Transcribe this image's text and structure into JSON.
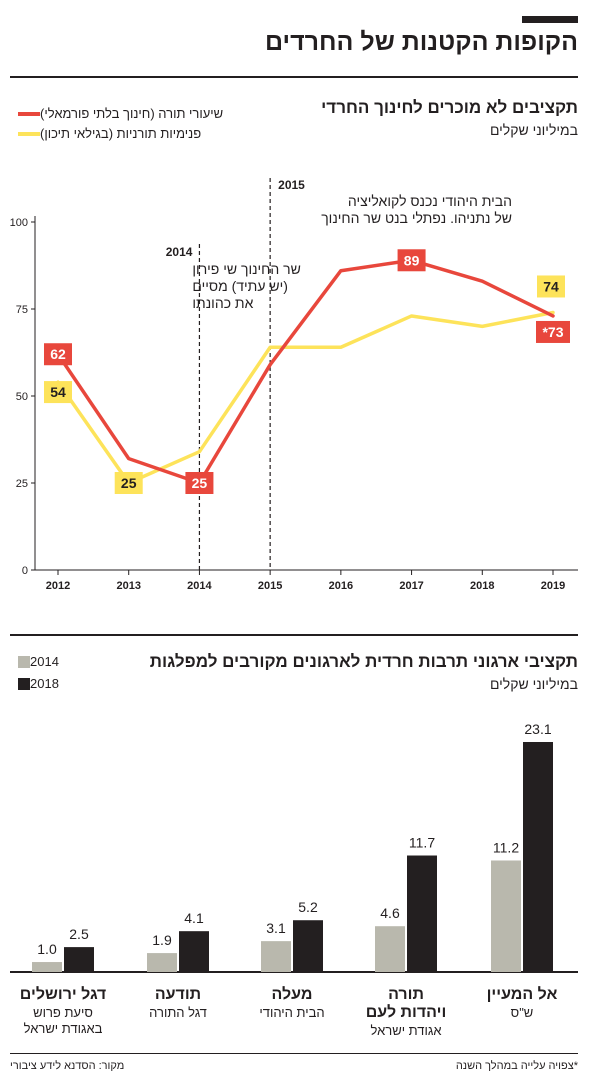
{
  "page_title": "הקופות הקטנות של החרדים",
  "line_chart": {
    "title": "תקציבים לא מוכרים לחינוך החרדי",
    "subtitle": "במיליוני שקלים",
    "legend": [
      {
        "label": "שיעורי תורה (חינוך בלתי פורמאלי)",
        "color": "#e8473c"
      },
      {
        "label": "פנימיות תורניות (בגילאי תיכון)",
        "color": "#fde35a"
      }
    ],
    "annotations": [
      {
        "year": "2014",
        "x": 2014,
        "lines": [
          "שר החינוך שי פירון",
          "(יש עתיד) מסיים",
          "את כהונתו"
        ]
      },
      {
        "year": "2015",
        "x": 2015,
        "lines": [
          "הבית היהודי נכנס לקואליציה",
          "של נתניהו. נפתלי בנט שר החינוך"
        ]
      }
    ]
  },
  "chart_data": [
    {
      "type": "line",
      "x": [
        2012,
        2013,
        2014,
        2015,
        2016,
        2017,
        2018,
        2019
      ],
      "categories": [
        "2012",
        "2013",
        "2014",
        "2015",
        "2016",
        "2017",
        "2018",
        "2019"
      ],
      "ylim": [
        0,
        100
      ],
      "yticks": [
        0,
        25,
        50,
        75,
        100
      ],
      "grid": false,
      "legend_position": "top-left",
      "series": [
        {
          "name": "שיעורי תורה (חינוך בלתי פורמאלי)",
          "color": "#e8473c",
          "values": [
            62,
            32,
            25,
            59,
            86,
            89,
            83,
            73
          ],
          "labels": [
            {
              "index": 0,
              "text": "62"
            },
            {
              "index": 2,
              "text": "25"
            },
            {
              "index": 5,
              "text": "89"
            },
            {
              "index": 7,
              "text": "*73"
            }
          ]
        },
        {
          "name": "פנימיות תורניות (בגילאי תיכון)",
          "color": "#fde35a",
          "values": [
            54,
            25,
            34,
            64,
            64,
            73,
            70,
            74
          ],
          "labels": [
            {
              "index": 0,
              "text": "54"
            },
            {
              "index": 1,
              "text": "25"
            },
            {
              "index": 7,
              "text": "74"
            }
          ]
        }
      ]
    },
    {
      "type": "bar",
      "title": "תקציבי ארגוני תרבות חרדית לארגונים מקורבים למפלגות",
      "subtitle": "במיליוני שקלים",
      "legend_position": "top-left",
      "categories": [
        "אל המעיין",
        "תורה ויהדות לעם",
        "מעלה",
        "תודעה",
        "דגל ירושלים"
      ],
      "category_lines": [
        [
          "אל המעיין"
        ],
        [
          "תורה",
          "ויהדות לעם"
        ],
        [
          "מעלה"
        ],
        [
          "תודעה"
        ],
        [
          "דגל ירושלים"
        ]
      ],
      "category_parents": [
        [
          "ש\"ס"
        ],
        [
          "אגודת ישראל"
        ],
        [
          "הבית היהודי"
        ],
        [
          "דגל התורה"
        ],
        [
          "סיעת פרוש",
          "באגודת ישראל"
        ]
      ],
      "series": [
        {
          "name": "2014",
          "color": "#b9b8ad",
          "values": [
            11.2,
            4.6,
            3.1,
            1.9,
            1.0
          ],
          "labels": [
            "11.2",
            "4.6",
            "3.1",
            "1.9",
            "1.0"
          ]
        },
        {
          "name": "2018",
          "color": "#231f20",
          "values": [
            23.1,
            11.7,
            5.2,
            4.1,
            2.5
          ],
          "labels": [
            "23.1",
            "11.7",
            "5.2",
            "4.1",
            "2.5"
          ]
        }
      ]
    }
  ],
  "footer": {
    "note": "*צפויה עלייה במהלך השנה",
    "source": "מקור: הסדנא לידע ציבורי"
  }
}
